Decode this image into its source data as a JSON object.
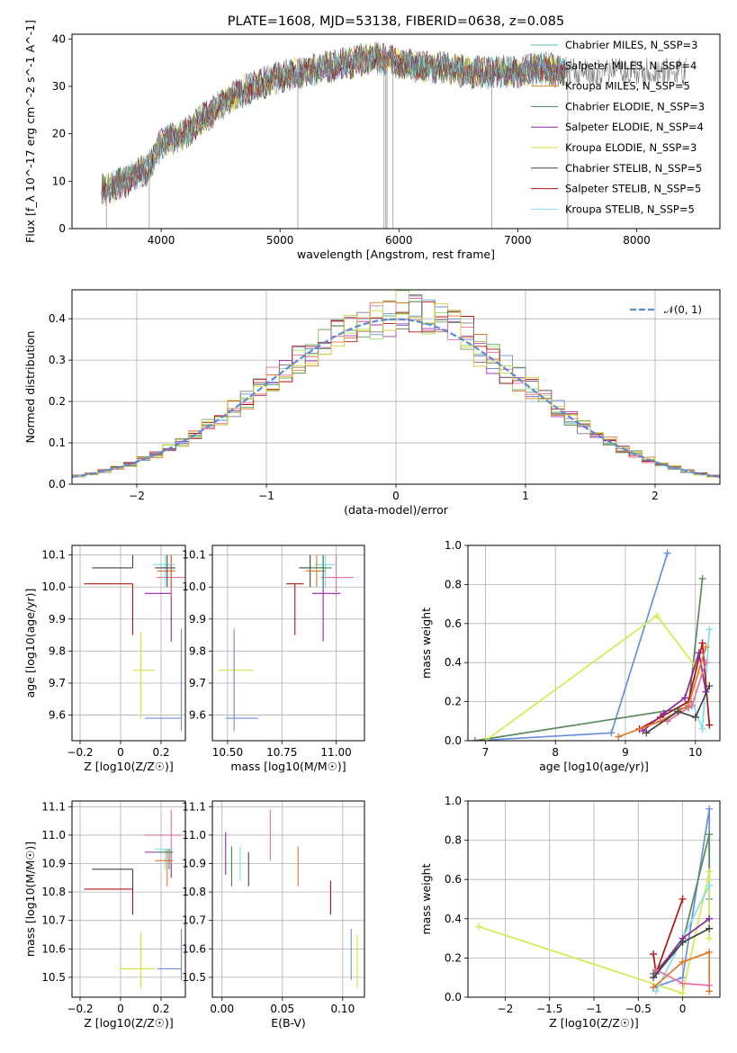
{
  "figure": {
    "title": "PLATE=1608, MJD=53138, FIBERID=0638, z=0.085"
  },
  "chart_data": [
    {
      "id": "spectrum",
      "type": "line",
      "title": "PLATE=1608, MJD=53138, FIBERID=0638, z=0.085",
      "xlabel": "wavelength [Angstrom, rest frame]",
      "ylabel": "Flux [f_λ 10^-17 erg cm^-2 s^-1 A^-1]",
      "xlim": [
        3250,
        8700
      ],
      "ylim": [
        0,
        41
      ],
      "xticks": [
        4000,
        5000,
        6000,
        7000,
        8000
      ],
      "yticks": [
        0,
        10,
        20,
        30,
        40
      ],
      "grid": false,
      "legend_position": "top-right",
      "continuum": [
        [
          3500,
          8
        ],
        [
          3700,
          10
        ],
        [
          3900,
          13
        ],
        [
          4000,
          18
        ],
        [
          4200,
          20
        ],
        [
          4400,
          24
        ],
        [
          4600,
          28
        ],
        [
          4800,
          30
        ],
        [
          5000,
          32
        ],
        [
          5200,
          33
        ],
        [
          5400,
          34
        ],
        [
          5600,
          35
        ],
        [
          5800,
          36
        ],
        [
          6000,
          35
        ],
        [
          6200,
          34
        ],
        [
          6400,
          34
        ],
        [
          6600,
          33
        ],
        [
          6800,
          33
        ],
        [
          7000,
          33
        ],
        [
          7200,
          34
        ],
        [
          7400,
          33
        ]
      ],
      "absorption_lines": [
        3540,
        3900,
        5150,
        5875,
        5890,
        5900,
        5950,
        6780,
        7420
      ],
      "series": [
        {
          "name": "Chabrier MILES, N_SSP=3",
          "color": "#5bc0b0"
        },
        {
          "name": "Salpeter MILES, N_SSP=4",
          "color": "#7b78bb"
        },
        {
          "name": "Kroupa MILES, N_SSP=5",
          "color": "#d08a1e"
        },
        {
          "name": "Chabrier ELODIE, N_SSP=3",
          "color": "#3f8a4f"
        },
        {
          "name": "Salpeter ELODIE, N_SSP=4",
          "color": "#8e28a0"
        },
        {
          "name": "Kroupa ELODIE, N_SSP=3",
          "color": "#d6e03c"
        },
        {
          "name": "Chabrier STELIB, N_SSP=5",
          "color": "#444444"
        },
        {
          "name": "Salpeter STELIB, N_SSP=5",
          "color": "#b01515"
        },
        {
          "name": "Kroupa STELIB, N_SSP=5",
          "color": "#7fdfee"
        }
      ]
    },
    {
      "id": "residuals",
      "type": "line",
      "xlabel": "(data-model)/error",
      "ylabel": "Normed distribution",
      "xlim": [
        -2.5,
        2.5
      ],
      "ylim": [
        0,
        0.47
      ],
      "xticks": [
        -2,
        -1,
        0,
        1,
        2
      ],
      "yticks": [
        0.0,
        0.1,
        0.2,
        0.3,
        0.4
      ],
      "grid": true,
      "legend_position": "top-right",
      "reference": {
        "name": "𝒩(0, 1)",
        "color": "#5b8bd6",
        "mean": 0,
        "sigma": 1
      },
      "hist_colors": [
        "#6b8fe0",
        "#a33bb0",
        "#e07a2a",
        "#5fa05f",
        "#e66ea0",
        "#a0e070",
        "#b01515",
        "#7f7f7f",
        "#d2cf3a"
      ]
    },
    {
      "id": "age_vs_Z",
      "type": "scatter",
      "xlabel": "Z [log10(Z/Z☉)]",
      "ylabel": "age [log10(age/yr)]",
      "xlim": [
        -0.24,
        0.32
      ],
      "ylim": [
        9.52,
        10.13
      ],
      "xticks": [
        -0.2,
        0.0,
        0.2
      ],
      "yticks": [
        9.6,
        9.7,
        9.8,
        9.9,
        10.0,
        10.1
      ],
      "grid": true,
      "points": [
        {
          "x": 0.06,
          "y": 10.06,
          "xlo": -0.14,
          "xhi": 0.06,
          "ylo": 10.06,
          "yhi": 10.1,
          "color": "#444444"
        },
        {
          "x": 0.06,
          "y": 10.01,
          "xlo": -0.18,
          "xhi": 0.06,
          "ylo": 9.85,
          "yhi": 10.01,
          "color": "#b01515"
        },
        {
          "x": 0.25,
          "y": 9.98,
          "xlo": 0.12,
          "xhi": 0.25,
          "ylo": 9.83,
          "yhi": 10.1,
          "color": "#8e28a0"
        },
        {
          "x": 0.25,
          "y": 10.03,
          "xlo": 0.18,
          "xhi": 0.32,
          "ylo": 9.97,
          "yhi": 10.1,
          "color": "#e66ea0"
        },
        {
          "x": 0.22,
          "y": 10.07,
          "xlo": 0.16,
          "xhi": 0.27,
          "ylo": 10.0,
          "yhi": 10.1,
          "color": "#7fdfee"
        },
        {
          "x": 0.25,
          "y": 10.05,
          "xlo": 0.18,
          "xhi": 0.27,
          "ylo": 10.0,
          "yhi": 10.1,
          "color": "#e07a2a"
        },
        {
          "x": 0.23,
          "y": 10.06,
          "xlo": 0.17,
          "xhi": 0.27,
          "ylo": 10.0,
          "yhi": 10.1,
          "color": "#444444"
        },
        {
          "x": 0.1,
          "y": 9.74,
          "xlo": 0.06,
          "xhi": 0.17,
          "ylo": 9.59,
          "yhi": 9.86,
          "color": "#d6e03c"
        },
        {
          "x": 0.3,
          "y": 9.59,
          "xlo": 0.12,
          "xhi": 0.3,
          "ylo": 9.55,
          "yhi": 9.87,
          "color": "#6b8fe0"
        }
      ]
    },
    {
      "id": "age_vs_mass",
      "type": "scatter",
      "xlabel": "mass [log10(M/M☉)]",
      "ylabel": "",
      "xlim": [
        10.43,
        11.13
      ],
      "ylim": [
        9.52,
        10.13
      ],
      "xticks": [
        10.5,
        10.75,
        11.0
      ],
      "xticklabels": [
        "10.50",
        "10.75",
        "11.00"
      ],
      "yticks": [
        9.6,
        9.7,
        9.8,
        9.9,
        10.0,
        10.1
      ],
      "grid": true,
      "points": [
        {
          "x": 10.88,
          "y": 10.06,
          "xlo": 10.83,
          "xhi": 10.94,
          "ylo": 10.0,
          "yhi": 10.1,
          "color": "#444444"
        },
        {
          "x": 10.81,
          "y": 10.01,
          "xlo": 10.77,
          "xhi": 10.85,
          "ylo": 9.85,
          "yhi": 10.01,
          "color": "#b01515"
        },
        {
          "x": 10.94,
          "y": 9.98,
          "xlo": 10.89,
          "xhi": 11.02,
          "ylo": 9.83,
          "yhi": 10.1,
          "color": "#8e28a0"
        },
        {
          "x": 11.0,
          "y": 10.03,
          "xlo": 10.93,
          "xhi": 11.08,
          "ylo": 9.97,
          "yhi": 10.1,
          "color": "#e66ea0"
        },
        {
          "x": 10.95,
          "y": 10.07,
          "xlo": 10.9,
          "xhi": 11.0,
          "ylo": 10.0,
          "yhi": 10.1,
          "color": "#7fdfee"
        },
        {
          "x": 10.91,
          "y": 10.05,
          "xlo": 10.86,
          "xhi": 10.95,
          "ylo": 10.0,
          "yhi": 10.1,
          "color": "#e07a2a"
        },
        {
          "x": 10.94,
          "y": 10.06,
          "xlo": 10.88,
          "xhi": 10.98,
          "ylo": 10.0,
          "yhi": 10.1,
          "color": "#3f8a4f"
        },
        {
          "x": 10.53,
          "y": 9.74,
          "xlo": 10.46,
          "xhi": 10.62,
          "ylo": 9.59,
          "yhi": 9.86,
          "color": "#d6e03c"
        },
        {
          "x": 10.53,
          "y": 9.59,
          "xlo": 10.49,
          "xhi": 10.64,
          "ylo": 9.55,
          "yhi": 9.87,
          "color": "#6b8fe0"
        }
      ]
    },
    {
      "id": "weight_vs_age",
      "type": "line",
      "xlabel": "age [log10(age/yr)]",
      "ylabel": "mass weight",
      "xlim": [
        6.75,
        10.35
      ],
      "ylim": [
        0,
        1.0
      ],
      "xticks": [
        7,
        8,
        9,
        10
      ],
      "yticks": [
        0.0,
        0.2,
        0.4,
        0.6,
        0.8,
        1.0
      ],
      "grid": true,
      "series": [
        {
          "color": "#6b8fe0",
          "x": [
            6.85,
            8.8,
            9.6
          ],
          "y": [
            0.0,
            0.04,
            0.96
          ]
        },
        {
          "color": "#5a8a5a",
          "x": [
            6.85,
            9.9,
            10.1
          ],
          "y": [
            0.0,
            0.17,
            0.83
          ]
        },
        {
          "color": "#d6ea50",
          "x": [
            7.0,
            9.45,
            10.0,
            10.15
          ],
          "y": [
            0.0,
            0.64,
            0.38,
            0.3
          ]
        },
        {
          "color": "#7fdfee",
          "x": [
            9.7,
            9.95,
            10.1,
            10.2
          ],
          "y": [
            0.16,
            0.2,
            0.06,
            0.57
          ]
        },
        {
          "color": "#b01515",
          "x": [
            9.2,
            9.5,
            9.9,
            10.1,
            10.2
          ],
          "y": [
            0.06,
            0.12,
            0.2,
            0.5,
            0.08
          ]
        },
        {
          "color": "#8e28a0",
          "x": [
            9.25,
            9.55,
            9.85,
            10.05,
            10.15
          ],
          "y": [
            0.05,
            0.14,
            0.22,
            0.45,
            0.25
          ]
        },
        {
          "color": "#e07a2a",
          "x": [
            8.9,
            9.5,
            9.9,
            10.15
          ],
          "y": [
            0.02,
            0.1,
            0.18,
            0.48
          ]
        },
        {
          "color": "#e66ea0",
          "x": [
            9.6,
            9.95,
            10.15
          ],
          "y": [
            0.1,
            0.18,
            0.4
          ]
        },
        {
          "color": "#444444",
          "x": [
            9.3,
            9.75,
            10.0,
            10.2
          ],
          "y": [
            0.04,
            0.15,
            0.12,
            0.28
          ]
        }
      ]
    },
    {
      "id": "mass_vs_Z",
      "type": "scatter",
      "xlabel": "Z [log10(Z/Z☉)]",
      "ylabel": "mass [log10(M/M☉)]",
      "xlim": [
        -0.24,
        0.32
      ],
      "ylim": [
        10.43,
        11.12
      ],
      "xticks": [
        -0.2,
        0.0,
        0.2
      ],
      "yticks": [
        10.5,
        10.6,
        10.7,
        10.8,
        10.9,
        11.0,
        11.1
      ],
      "grid": true,
      "points": [
        {
          "x": 0.06,
          "y": 10.88,
          "xlo": -0.14,
          "xhi": 0.06,
          "ylo": 10.81,
          "yhi": 10.88,
          "color": "#444444"
        },
        {
          "x": 0.06,
          "y": 10.81,
          "xlo": -0.18,
          "xhi": 0.06,
          "ylo": 10.72,
          "yhi": 10.81,
          "color": "#b01515"
        },
        {
          "x": 0.25,
          "y": 10.94,
          "xlo": 0.12,
          "xhi": 0.25,
          "ylo": 10.85,
          "yhi": 10.95,
          "color": "#8e28a0"
        },
        {
          "x": 0.25,
          "y": 11.0,
          "xlo": 0.12,
          "xhi": 0.3,
          "ylo": 10.9,
          "yhi": 11.09,
          "color": "#e66ea0"
        },
        {
          "x": 0.22,
          "y": 10.95,
          "xlo": 0.17,
          "xhi": 0.26,
          "ylo": 10.88,
          "yhi": 10.95,
          "color": "#7fdfee"
        },
        {
          "x": 0.23,
          "y": 10.91,
          "xlo": 0.17,
          "xhi": 0.26,
          "ylo": 10.82,
          "yhi": 10.95,
          "color": "#e07a2a"
        },
        {
          "x": 0.24,
          "y": 10.94,
          "xlo": 0.18,
          "xhi": 0.26,
          "ylo": 10.88,
          "yhi": 10.95,
          "color": "#3f8a4f"
        },
        {
          "x": 0.1,
          "y": 10.53,
          "xlo": 0.0,
          "xhi": 0.17,
          "ylo": 10.46,
          "yhi": 10.66,
          "color": "#d6e03c"
        },
        {
          "x": 0.3,
          "y": 10.53,
          "xlo": 0.18,
          "xhi": 0.3,
          "ylo": 10.49,
          "yhi": 10.67,
          "color": "#6b8fe0"
        }
      ]
    },
    {
      "id": "mass_vs_EBV",
      "type": "scatter",
      "xlabel": "E(B-V)",
      "ylabel": "",
      "xlim": [
        -0.008,
        0.118
      ],
      "ylim": [
        10.43,
        11.12
      ],
      "xticks": [
        0.0,
        0.05,
        0.1
      ],
      "xticklabels": [
        "0.00",
        "0.05",
        "0.10"
      ],
      "yticks": [
        10.5,
        10.6,
        10.7,
        10.8,
        10.9,
        11.0,
        11.1
      ],
      "grid": true,
      "points": [
        {
          "x": 0.003,
          "y": 10.94,
          "ylo": 10.86,
          "yhi": 11.01,
          "color": "#8e28a0"
        },
        {
          "x": 0.008,
          "y": 10.89,
          "ylo": 10.82,
          "yhi": 10.96,
          "color": "#3f8a4f"
        },
        {
          "x": 0.015,
          "y": 10.89,
          "ylo": 10.84,
          "yhi": 10.96,
          "color": "#7fdfee"
        },
        {
          "x": 0.022,
          "y": 10.87,
          "ylo": 10.82,
          "yhi": 10.94,
          "color": "#444444"
        },
        {
          "x": 0.04,
          "y": 11.0,
          "ylo": 10.91,
          "yhi": 11.09,
          "color": "#e66ea0"
        },
        {
          "x": 0.063,
          "y": 10.88,
          "ylo": 10.82,
          "yhi": 10.96,
          "color": "#e07a2a"
        },
        {
          "x": 0.09,
          "y": 10.76,
          "ylo": 10.72,
          "yhi": 10.84,
          "color": "#b01515"
        },
        {
          "x": 0.107,
          "y": 10.58,
          "ylo": 10.49,
          "yhi": 10.67,
          "color": "#6b8fe0"
        },
        {
          "x": 0.112,
          "y": 10.55,
          "ylo": 10.46,
          "yhi": 10.65,
          "color": "#d6e03c"
        }
      ]
    },
    {
      "id": "weight_vs_Z",
      "type": "line",
      "xlabel": "Z [log10(Z/Z☉)]",
      "ylabel": "mass weight",
      "xlim": [
        -2.42,
        0.42
      ],
      "ylim": [
        0,
        1.0
      ],
      "xticks": [
        -2.0,
        -1.5,
        -1.0,
        -0.5,
        0.0
      ],
      "yticks": [
        0.0,
        0.2,
        0.4,
        0.6,
        0.8,
        1.0
      ],
      "grid": true,
      "series": [
        {
          "color": "#6b8fe0",
          "x": [
            -0.33,
            0.0,
            0.3,
            0.3
          ],
          "y": [
            0.05,
            0.1,
            0.96,
            0.5
          ]
        },
        {
          "color": "#5a8a5a",
          "x": [
            -0.33,
            0.0,
            0.3,
            0.3
          ],
          "y": [
            0.12,
            0.28,
            0.83,
            0.35
          ]
        },
        {
          "color": "#d6ea50",
          "x": [
            -2.3,
            0.0,
            0.3,
            0.3
          ],
          "y": [
            0.36,
            0.02,
            0.64,
            0.3
          ]
        },
        {
          "color": "#7fdfee",
          "x": [
            -0.3,
            0.0,
            0.3
          ],
          "y": [
            0.03,
            0.3,
            0.57
          ]
        },
        {
          "color": "#b01515",
          "x": [
            -0.33,
            -0.3,
            0.0
          ],
          "y": [
            0.22,
            0.12,
            0.5
          ]
        },
        {
          "color": "#8e28a0",
          "x": [
            -0.3,
            0.0,
            0.3
          ],
          "y": [
            0.12,
            0.3,
            0.4
          ]
        },
        {
          "color": "#e07a2a",
          "x": [
            -0.33,
            0.0,
            0.3,
            0.3
          ],
          "y": [
            0.05,
            0.18,
            0.23,
            0.03
          ]
        },
        {
          "color": "#e66ea0",
          "x": [
            -0.3,
            0.0,
            0.3
          ],
          "y": [
            0.14,
            0.07,
            0.06
          ]
        },
        {
          "color": "#444444",
          "x": [
            -0.33,
            0.0,
            0.3
          ],
          "y": [
            0.1,
            0.28,
            0.35
          ]
        }
      ]
    }
  ]
}
